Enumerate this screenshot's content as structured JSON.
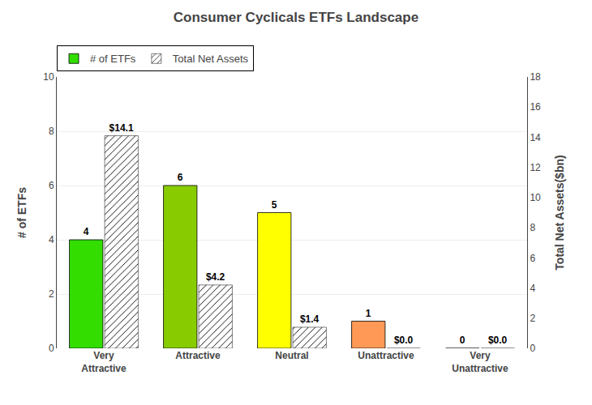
{
  "chart_data": {
    "type": "bar",
    "title": "Consumer Cyclicals ETFs Landscape",
    "categories": [
      "Very\nAttractive",
      "Attractive",
      "Neutral",
      "Unattractive",
      "Very\nUnattractive"
    ],
    "series": [
      {
        "name": "# of ETFs",
        "colors": [
          "#33dd00",
          "#88cc00",
          "#ffff00",
          "#ff9955",
          "#ff9955"
        ],
        "values": [
          4,
          6,
          5,
          1,
          0
        ]
      },
      {
        "name": "Total Net Assets",
        "color": "#6699ee",
        "values": [
          14.1,
          4.2,
          1.4,
          0.0,
          0.0
        ],
        "value_labels": [
          "$14.1",
          "$4.2",
          "$1.4",
          "$0.0",
          "$0.0"
        ],
        "axis": "y2"
      }
    ],
    "ylabel": "# of ETFs",
    "y2label": "Total Net Assets($bn)",
    "ylim": [
      0,
      10
    ],
    "yticks": [
      0,
      2,
      4,
      6,
      8,
      10
    ],
    "y2lim": [
      0,
      18
    ],
    "y2ticks": [
      0,
      2,
      4,
      6,
      8,
      10,
      12,
      14,
      16,
      18
    ],
    "grid": true,
    "legend": "upper left",
    "data_labels": true
  }
}
